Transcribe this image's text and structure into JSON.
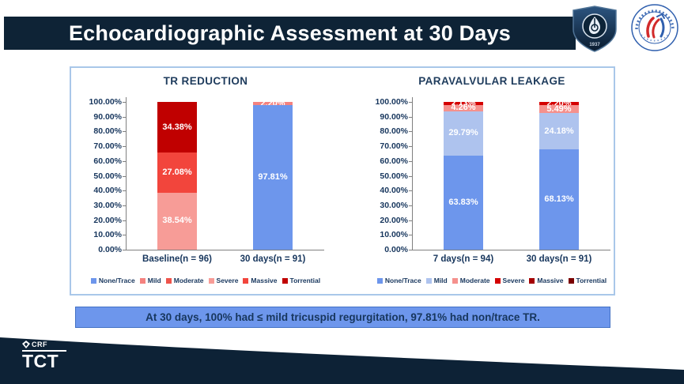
{
  "title": "Echocardiographic Assessment at 30 Days",
  "summary": "At 30 days, 100% had ≤ mild tricuspid regurgitation, 97.81% had non/trace TR.",
  "footer": {
    "crf_label": "CRF",
    "tct_label": "TCT"
  },
  "logos": {
    "shield_year": "1937"
  },
  "colors": {
    "banner_bg": "#0E2336",
    "footer_bg": "#0D2236",
    "panel_border": "#A9C7E9",
    "summary_bg": "#6D96EC",
    "summary_border": "#4472C4",
    "text_navy": "#17365D"
  },
  "chart_data": [
    {
      "type": "bar",
      "stacked": true,
      "title": "TR REDUCTION",
      "categories": [
        "Baseline(n = 96)",
        "30 days(n = 91)"
      ],
      "series": [
        {
          "name": "None/Trace",
          "color": "#6D96EC",
          "values": [
            0,
            97.81
          ]
        },
        {
          "name": "Mild",
          "color": "#F5827F",
          "values": [
            0,
            2.2
          ]
        },
        {
          "name": "Moderate",
          "color": "#EE544B",
          "values": [
            0,
            0
          ]
        },
        {
          "name": "Severe",
          "color": "#F79C97",
          "values": [
            38.54,
            0
          ]
        },
        {
          "name": "Massive",
          "color": "#F2453C",
          "values": [
            27.08,
            0
          ]
        },
        {
          "name": "Torrential",
          "color": "#C00000",
          "values": [
            34.38,
            0
          ]
        }
      ],
      "ylim": [
        0,
        100
      ],
      "ytick_step": 10,
      "ytick_format": "0.00%",
      "value_label_format": "0.00%",
      "grid": false,
      "legend_position": "bottom"
    },
    {
      "type": "bar",
      "stacked": true,
      "title": "PARAVALVULAR LEAKAGE",
      "categories": [
        "7 days(n = 94)",
        "30 days(n = 91)"
      ],
      "series": [
        {
          "name": "None/Trace",
          "color": "#6D96EC",
          "values": [
            63.83,
            68.13
          ]
        },
        {
          "name": "Mild",
          "color": "#AEC3EE",
          "values": [
            29.79,
            24.18
          ]
        },
        {
          "name": "Moderate",
          "color": "#F5918D",
          "values": [
            4.26,
            5.49
          ]
        },
        {
          "name": "Severe",
          "color": "#D40000",
          "values": [
            2.13,
            2.2
          ]
        },
        {
          "name": "Massive",
          "color": "#A40000",
          "values": [
            0,
            0
          ]
        },
        {
          "name": "Torrential",
          "color": "#7A0000",
          "values": [
            0,
            0
          ]
        }
      ],
      "ylim": [
        0,
        100
      ],
      "ytick_step": 10,
      "ytick_format": "0.00%",
      "value_label_format": "0.00%",
      "grid": false,
      "legend_position": "bottom"
    }
  ]
}
